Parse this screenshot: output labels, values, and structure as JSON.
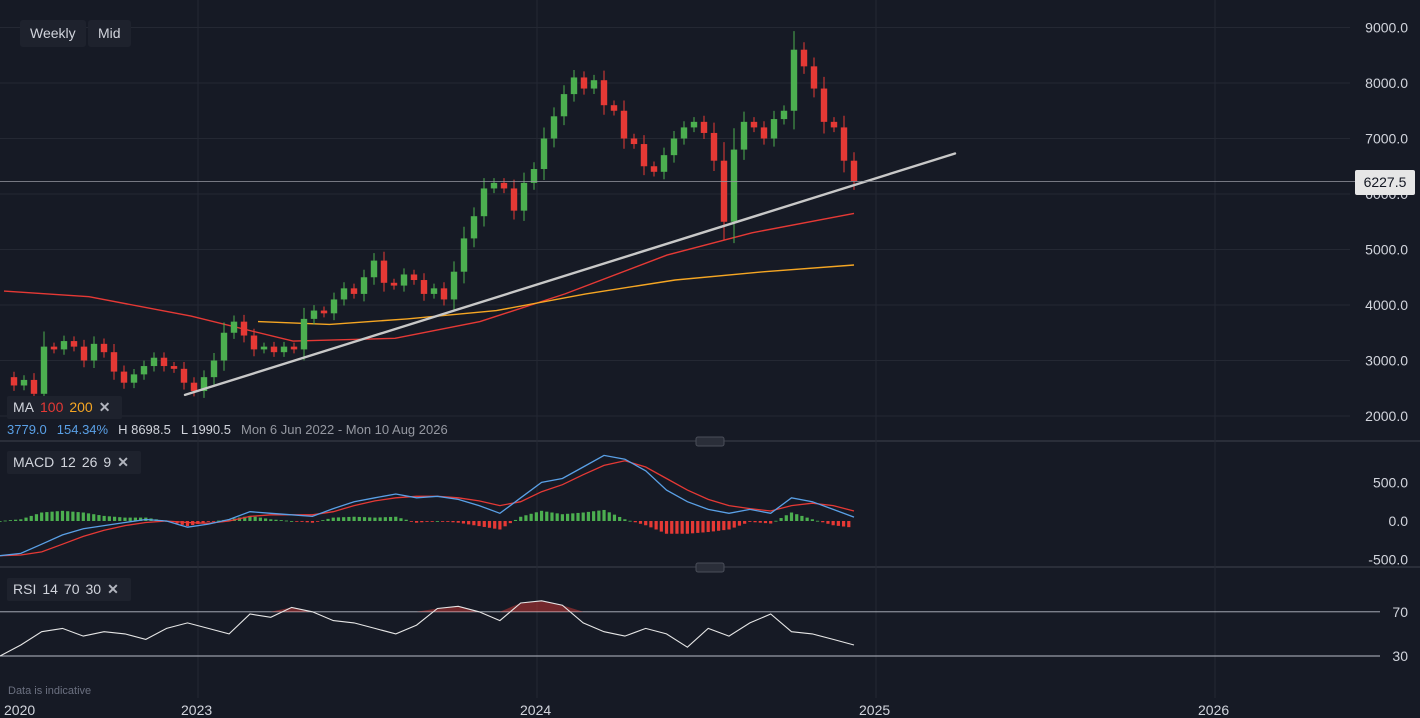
{
  "toolbar": {
    "interval": "Weekly",
    "price_type": "Mid"
  },
  "legend_ma": {
    "label": "MA",
    "p1": "100",
    "p2": "200",
    "close": "✕"
  },
  "legend_macd": {
    "label": "MACD",
    "p1": "12",
    "p2": "26",
    "p3": "9",
    "close": "✕"
  },
  "legend_rsi": {
    "label": "RSI",
    "p1": "14",
    "p2": "70",
    "p3": "30",
    "close": "✕"
  },
  "stats": {
    "value": "3779.0",
    "change": "154.34%",
    "high": "H 8698.5",
    "low": "L 1990.5",
    "range": "Mon 6 Jun 2022 - Mon 10 Aug 2026"
  },
  "last_price": "6227.5",
  "footer_note": "Data is indicative",
  "colors": {
    "up": "#4caf50",
    "down": "#e53935",
    "ma100": "#e53935",
    "ma200": "#f5a623",
    "macd": "#5aa0e6",
    "signal": "#e53935",
    "rsi": "#e6e6e6",
    "trend": "#c8c8c8"
  },
  "chart_data": {
    "type": "candlestick",
    "x_axis": {
      "ticks": [
        "2020",
        "2023",
        "2024",
        "2025",
        "2026"
      ]
    },
    "price_axis": {
      "ticks": [
        2000,
        3000,
        4000,
        5000,
        6000,
        7000,
        8000,
        9000
      ],
      "labels": [
        "2000.0",
        "3000.0",
        "4000.0",
        "5000.0",
        "6000.0",
        "7000.0",
        "8000.0",
        "9000.0"
      ]
    },
    "macd_axis": {
      "ticks": [
        -500,
        0,
        500
      ],
      "labels": [
        "-500.0",
        "0.0",
        "500.0"
      ]
    },
    "rsi_axis": {
      "ticks": [
        30,
        70
      ],
      "labels": [
        "30",
        "70"
      ]
    },
    "price_path": [
      2700,
      2550,
      2650,
      2400,
      3250,
      3200,
      3350,
      3250,
      3000,
      3300,
      3150,
      2800,
      2600,
      2750,
      2900,
      3050,
      2900,
      2850,
      2600,
      2450,
      2700,
      3000,
      3500,
      3700,
      3450,
      3200,
      3250,
      3150,
      3250,
      3200,
      3750,
      3900,
      3850,
      4100,
      4300,
      4200,
      4500,
      4800,
      4400,
      4350,
      4550,
      4450,
      4200,
      4300,
      4100,
      4600,
      5200,
      5600,
      6100,
      6200,
      6100,
      5700,
      6200,
      6450,
      7000,
      7400,
      7800,
      8100,
      7900,
      8050,
      7600,
      7500,
      7000,
      6900,
      6500,
      6400,
      6700,
      7000,
      7200,
      7300,
      7100,
      6600,
      5500,
      6800,
      7300,
      7200,
      7000,
      7350,
      7500,
      8600,
      8300,
      7900,
      7300,
      7200,
      6600,
      6227.5
    ],
    "ma100": [
      [
        0,
        4250
      ],
      [
        0.1,
        4150
      ],
      [
        0.22,
        3800
      ],
      [
        0.34,
        3350
      ],
      [
        0.46,
        3400
      ],
      [
        0.56,
        3700
      ],
      [
        0.66,
        4200
      ],
      [
        0.78,
        4900
      ],
      [
        0.88,
        5300
      ],
      [
        1.0,
        5650
      ]
    ],
    "ma200_start_index": 30,
    "ma200": [
      [
        0,
        3700
      ],
      [
        0.12,
        3650
      ],
      [
        0.25,
        3750
      ],
      [
        0.4,
        3900
      ],
      [
        0.55,
        4200
      ],
      [
        0.7,
        4450
      ],
      [
        0.85,
        4600
      ],
      [
        1.0,
        4720
      ]
    ],
    "trendline": {
      "from": [
        22,
        2450
      ],
      "to_x_ratio": 1.12,
      "to": [
        0,
        6700
      ]
    },
    "macd_series": [
      -450,
      -420,
      -300,
      -180,
      -100,
      -60,
      -20,
      20,
      0,
      -80,
      -40,
      20,
      120,
      100,
      80,
      60,
      160,
      250,
      300,
      350,
      300,
      320,
      280,
      200,
      100,
      300,
      500,
      550,
      700,
      850,
      800,
      650,
      400,
      250,
      150,
      100,
      150,
      100,
      300,
      250,
      150,
      50
    ],
    "signal_series": [
      -450,
      -440,
      -400,
      -300,
      -200,
      -120,
      -60,
      -20,
      0,
      -20,
      -30,
      0,
      60,
      80,
      80,
      80,
      120,
      200,
      260,
      300,
      320,
      320,
      300,
      260,
      200,
      250,
      380,
      470,
      600,
      720,
      780,
      700,
      550,
      400,
      280,
      200,
      160,
      130,
      200,
      230,
      200,
      130
    ],
    "rsi_series": [
      30,
      40,
      52,
      55,
      48,
      52,
      50,
      45,
      55,
      60,
      55,
      50,
      68,
      65,
      74,
      70,
      62,
      60,
      55,
      50,
      58,
      73,
      75,
      70,
      62,
      78,
      80,
      76,
      60,
      52,
      48,
      55,
      50,
      38,
      55,
      48,
      60,
      68,
      52,
      50,
      45,
      40
    ]
  }
}
